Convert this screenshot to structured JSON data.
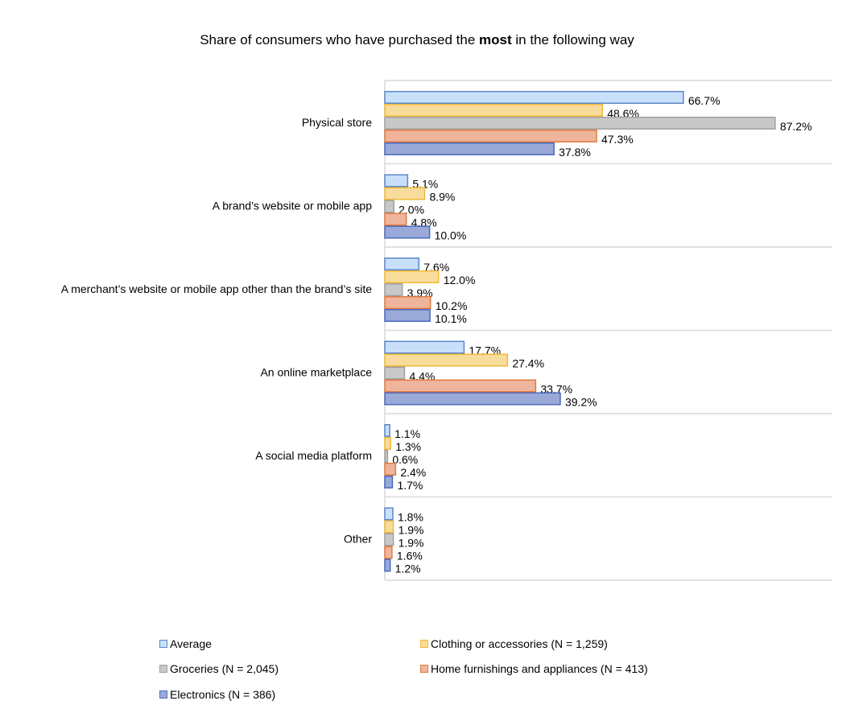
{
  "chart_data": {
    "type": "bar",
    "orientation": "horizontal",
    "title_parts": [
      "Share of consumers who have purchased the ",
      "most",
      " in the following way"
    ],
    "categories": [
      "Physical store",
      "A brand’s website or mobile app",
      "A merchant’s website or mobile app other than the brand’s site",
      "An online marketplace",
      "A social media platform",
      "Other"
    ],
    "series": [
      {
        "name": "Average",
        "values": [
          66.7,
          5.1,
          7.6,
          17.7,
          1.1,
          1.8
        ],
        "fill": "#c9e0fb",
        "stroke": "#5b87c9"
      },
      {
        "name": "Clothing or accessories (N = 1,259)",
        "values": [
          48.6,
          8.9,
          12.0,
          27.4,
          1.3,
          1.9
        ],
        "fill": "#f8dc9c",
        "stroke": "#f0b93a"
      },
      {
        "name": "Groceries (N = 2,045)",
        "values": [
          87.2,
          2.0,
          3.9,
          4.4,
          0.6,
          1.9
        ],
        "fill": "#c8c8c8",
        "stroke": "#a0a0a0"
      },
      {
        "name": "Home furnishings and appliances (N = 413)",
        "values": [
          47.3,
          4.8,
          10.2,
          33.7,
          2.4,
          1.6
        ],
        "fill": "#efb49c",
        "stroke": "#e07b3f"
      },
      {
        "name": "Electronics (N = 386)",
        "values": [
          37.8,
          10.0,
          10.1,
          39.2,
          1.7,
          1.2
        ],
        "fill": "#9aa9d8",
        "stroke": "#4a6abf"
      }
    ],
    "value_format": "percent with one decimal",
    "xlim": [
      0,
      100
    ],
    "grid": "horizontal separators between categories",
    "legend_placement": "bottom"
  }
}
